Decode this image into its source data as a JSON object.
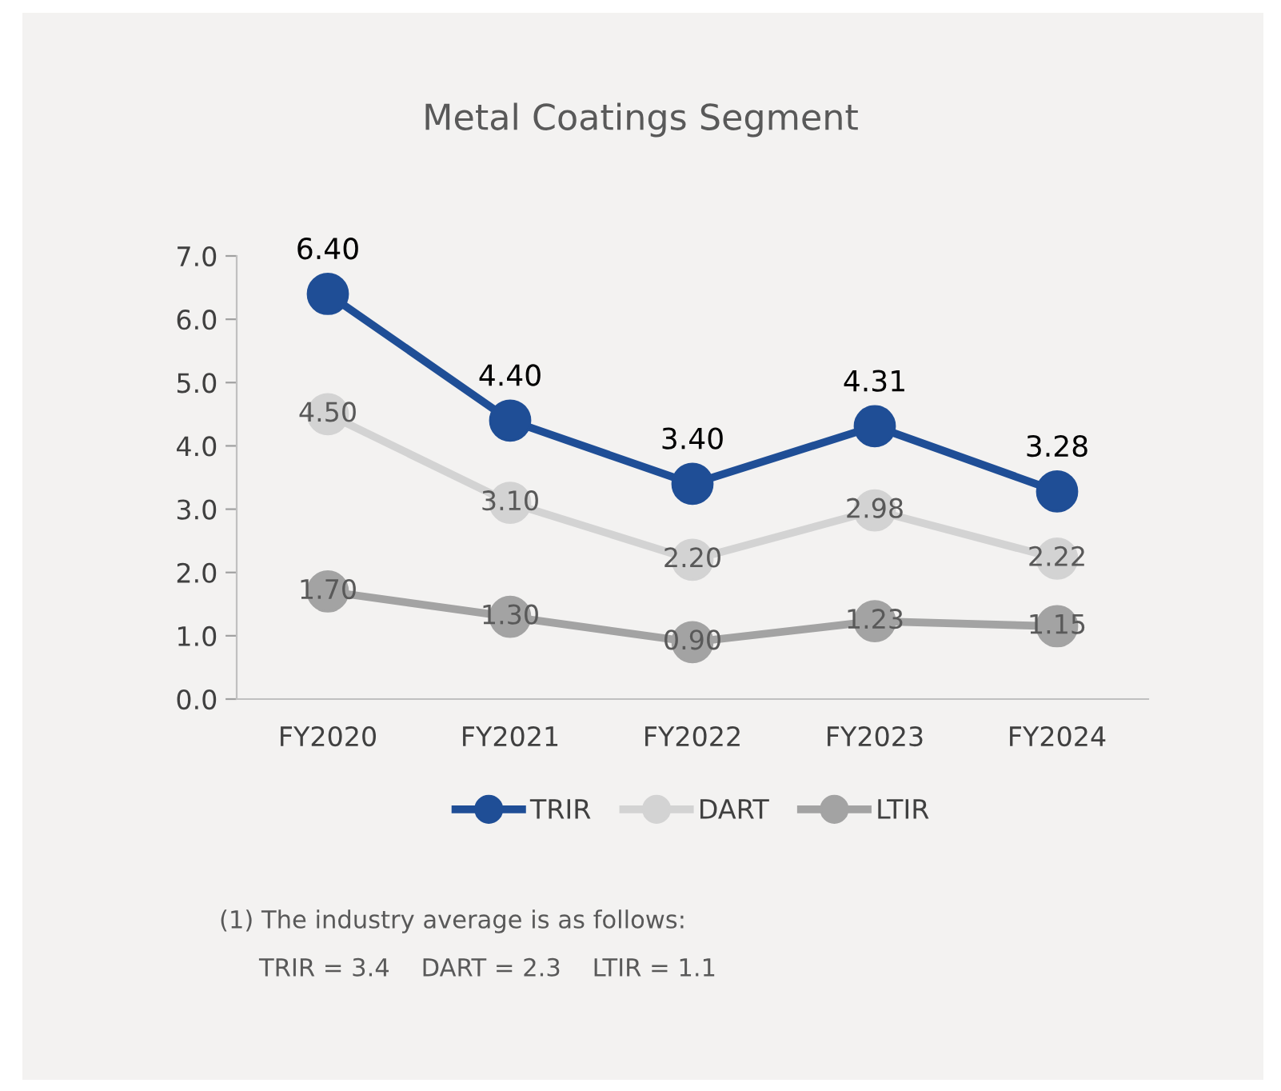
{
  "chart_data": {
    "type": "line",
    "title": "Metal Coatings Segment",
    "categories": [
      "FY2020",
      "FY2021",
      "FY2022",
      "FY2023",
      "FY2024"
    ],
    "series": [
      {
        "name": "TRIR",
        "color": "#1f4e96",
        "values": [
          6.4,
          4.4,
          3.4,
          4.31,
          3.28
        ],
        "value_labels": [
          "6.40",
          "4.40",
          "3.40",
          "4.31",
          "3.28"
        ]
      },
      {
        "name": "DART",
        "color": "#d3d3d3",
        "values": [
          4.5,
          3.1,
          2.2,
          2.98,
          2.22
        ],
        "value_labels": [
          "4.50",
          "3.10",
          "2.20",
          "2.98",
          "2.22"
        ]
      },
      {
        "name": "LTIR",
        "color": "#a3a3a3",
        "values": [
          1.7,
          1.3,
          0.9,
          1.23,
          1.15
        ],
        "value_labels": [
          "1.70",
          "1.30",
          "0.90",
          "1.23",
          "1.15"
        ]
      }
    ],
    "ylim": [
      0,
      7
    ],
    "yticks": [
      {
        "value": 0,
        "label": "0.0"
      },
      {
        "value": 1,
        "label": "1.0"
      },
      {
        "value": 2,
        "label": "2.0"
      },
      {
        "value": 3,
        "label": "3.0"
      },
      {
        "value": 4,
        "label": "4.0"
      },
      {
        "value": 5,
        "label": "5.0"
      },
      {
        "value": 6,
        "label": "6.0"
      },
      {
        "value": 7,
        "label": "7.0"
      }
    ],
    "grid": false,
    "legend": "bottom",
    "marker": "circle",
    "line_style": "solid",
    "annotations": [
      "(1) The industry average is as follows:",
      "TRIR = 3.4    DART = 2.3    LTIR = 1.1"
    ]
  }
}
